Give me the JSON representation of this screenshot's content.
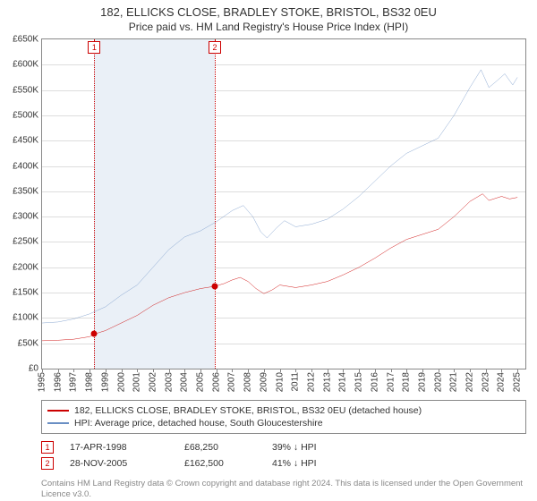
{
  "title": "182, ELLICKS CLOSE, BRADLEY STOKE, BRISTOL, BS32 0EU",
  "subtitle": "Price paid vs. HM Land Registry's House Price Index (HPI)",
  "chart": {
    "type": "line",
    "ylabel_prefix": "£",
    "ylim": [
      0,
      650000
    ],
    "ytick_step": 50000,
    "yticks": [
      "£0",
      "£50K",
      "£100K",
      "£150K",
      "£200K",
      "£250K",
      "£300K",
      "£350K",
      "£400K",
      "£450K",
      "£500K",
      "£550K",
      "£600K",
      "£650K"
    ],
    "xlim": [
      1995,
      2025.5
    ],
    "xticks": [
      1995,
      1996,
      1997,
      1998,
      1999,
      2000,
      2001,
      2002,
      2003,
      2004,
      2005,
      2006,
      2007,
      2008,
      2009,
      2010,
      2011,
      2012,
      2013,
      2014,
      2015,
      2016,
      2017,
      2018,
      2019,
      2020,
      2021,
      2022,
      2023,
      2024,
      2025
    ],
    "background_color": "#ffffff",
    "grid_color": "#dddddd",
    "axis_color": "#888888",
    "band_color": "#eaf0f7",
    "marker_color": "#cc0000",
    "series": [
      {
        "name": "property",
        "label": "182, ELLICKS CLOSE, BRADLEY STOKE, BRISTOL, BS32 0EU (detached house)",
        "color": "#cc0000",
        "line_width": 1.6,
        "points": [
          [
            1995.0,
            55000
          ],
          [
            1996.0,
            56000
          ],
          [
            1997.0,
            58000
          ],
          [
            1998.0,
            63000
          ],
          [
            1998.3,
            68250
          ],
          [
            1999.0,
            75000
          ],
          [
            2000.0,
            90000
          ],
          [
            2001.0,
            105000
          ],
          [
            2002.0,
            125000
          ],
          [
            2003.0,
            140000
          ],
          [
            2004.0,
            150000
          ],
          [
            2005.0,
            158000
          ],
          [
            2005.9,
            162500
          ],
          [
            2006.5,
            168000
          ],
          [
            2007.0,
            175000
          ],
          [
            2007.5,
            180000
          ],
          [
            2008.0,
            172000
          ],
          [
            2008.5,
            158000
          ],
          [
            2009.0,
            148000
          ],
          [
            2009.5,
            155000
          ],
          [
            2010.0,
            165000
          ],
          [
            2011.0,
            160000
          ],
          [
            2012.0,
            165000
          ],
          [
            2013.0,
            172000
          ],
          [
            2014.0,
            185000
          ],
          [
            2015.0,
            200000
          ],
          [
            2016.0,
            218000
          ],
          [
            2017.0,
            238000
          ],
          [
            2018.0,
            255000
          ],
          [
            2019.0,
            265000
          ],
          [
            2020.0,
            275000
          ],
          [
            2021.0,
            300000
          ],
          [
            2022.0,
            330000
          ],
          [
            2022.8,
            345000
          ],
          [
            2023.2,
            332000
          ],
          [
            2024.0,
            340000
          ],
          [
            2024.5,
            335000
          ],
          [
            2025.0,
            338000
          ]
        ]
      },
      {
        "name": "hpi",
        "label": "HPI: Average price, detached house, South Gloucestershire",
        "color": "#6a8fc4",
        "line_width": 1.4,
        "points": [
          [
            1995.0,
            90000
          ],
          [
            1996.0,
            92000
          ],
          [
            1997.0,
            98000
          ],
          [
            1998.0,
            108000
          ],
          [
            1999.0,
            122000
          ],
          [
            2000.0,
            145000
          ],
          [
            2001.0,
            165000
          ],
          [
            2002.0,
            200000
          ],
          [
            2003.0,
            235000
          ],
          [
            2004.0,
            260000
          ],
          [
            2005.0,
            272000
          ],
          [
            2006.0,
            290000
          ],
          [
            2007.0,
            312000
          ],
          [
            2007.7,
            322000
          ],
          [
            2008.3,
            300000
          ],
          [
            2008.8,
            270000
          ],
          [
            2009.2,
            258000
          ],
          [
            2009.8,
            278000
          ],
          [
            2010.3,
            292000
          ],
          [
            2011.0,
            280000
          ],
          [
            2012.0,
            285000
          ],
          [
            2013.0,
            295000
          ],
          [
            2014.0,
            315000
          ],
          [
            2015.0,
            340000
          ],
          [
            2016.0,
            370000
          ],
          [
            2017.0,
            400000
          ],
          [
            2018.0,
            425000
          ],
          [
            2019.0,
            440000
          ],
          [
            2020.0,
            455000
          ],
          [
            2021.0,
            500000
          ],
          [
            2022.0,
            555000
          ],
          [
            2022.7,
            590000
          ],
          [
            2023.2,
            555000
          ],
          [
            2023.7,
            568000
          ],
          [
            2024.2,
            582000
          ],
          [
            2024.7,
            560000
          ],
          [
            2025.0,
            575000
          ]
        ]
      }
    ],
    "sales_band": {
      "start": 1998.3,
      "end": 2005.9
    },
    "sale_markers": [
      {
        "n": "1",
        "x": 1998.3,
        "y": 68250
      },
      {
        "n": "2",
        "x": 2005.9,
        "y": 162500
      }
    ]
  },
  "legend": {
    "items": [
      {
        "color": "#cc0000",
        "label": "182, ELLICKS CLOSE, BRADLEY STOKE, BRISTOL, BS32 0EU (detached house)"
      },
      {
        "color": "#6a8fc4",
        "label": "HPI: Average price, detached house, South Gloucestershire"
      }
    ]
  },
  "sales": [
    {
      "n": "1",
      "date": "17-APR-1998",
      "price": "£68,250",
      "delta": "39% ↓ HPI"
    },
    {
      "n": "2",
      "date": "28-NOV-2005",
      "price": "£162,500",
      "delta": "41% ↓ HPI"
    }
  ],
  "attribution": "Contains HM Land Registry data © Crown copyright and database right 2024. This data is licensed under the Open Government Licence v3.0."
}
